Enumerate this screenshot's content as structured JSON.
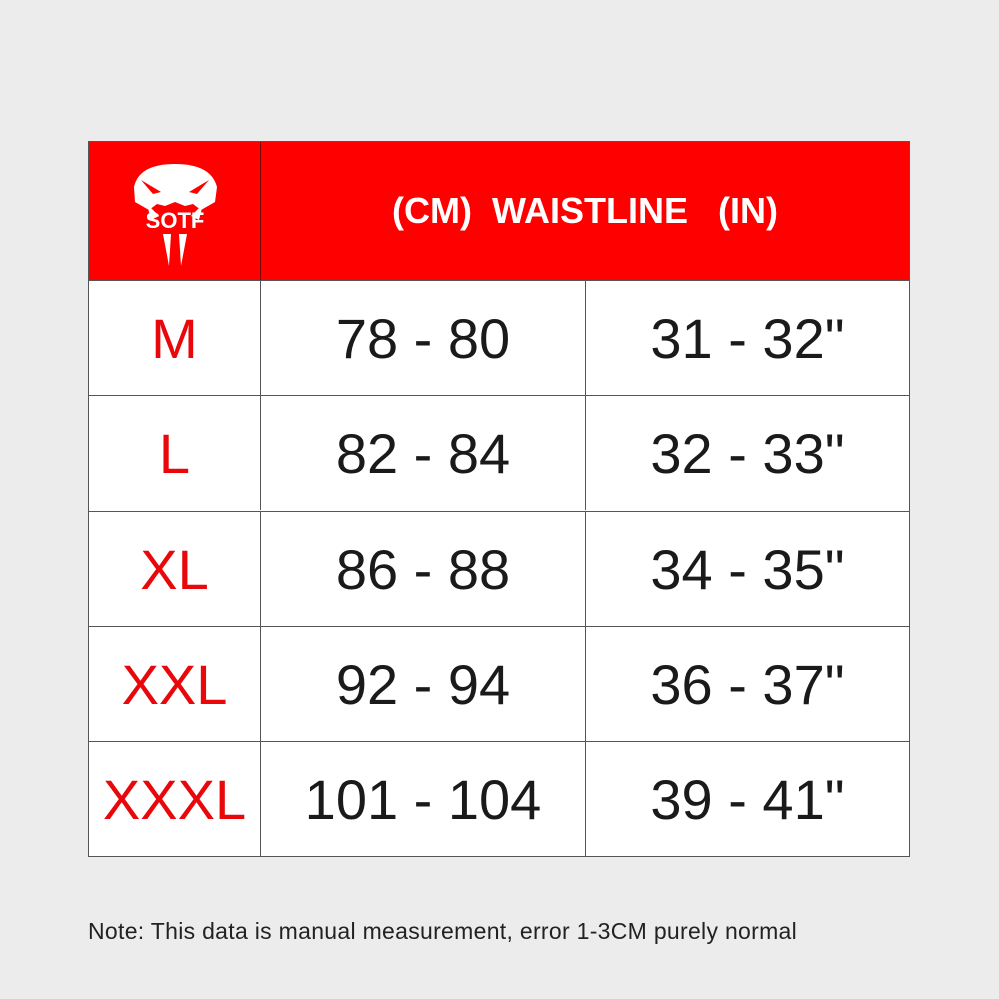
{
  "header": {
    "title": "(CM)  WAISTLINE   (IN)",
    "logo_text": "SOTF"
  },
  "colors": {
    "header_bg": "#fe0000",
    "size_text": "#e8080c"
  },
  "rows": [
    {
      "size": "M",
      "cm": "78 - 80",
      "in": "31 - 32\""
    },
    {
      "size": "L",
      "cm": "82 - 84",
      "in": "32 - 33\""
    },
    {
      "size": "XL",
      "cm": "86 - 88",
      "in": "34 - 35\""
    },
    {
      "size": "XXL",
      "cm": "92 - 94",
      "in": "36 - 37\""
    },
    {
      "size": "XXXL",
      "cm": "101 - 104",
      "in": "39 - 41\""
    }
  ],
  "note": "Note: This data is manual measurement, error 1-3CM purely normal"
}
